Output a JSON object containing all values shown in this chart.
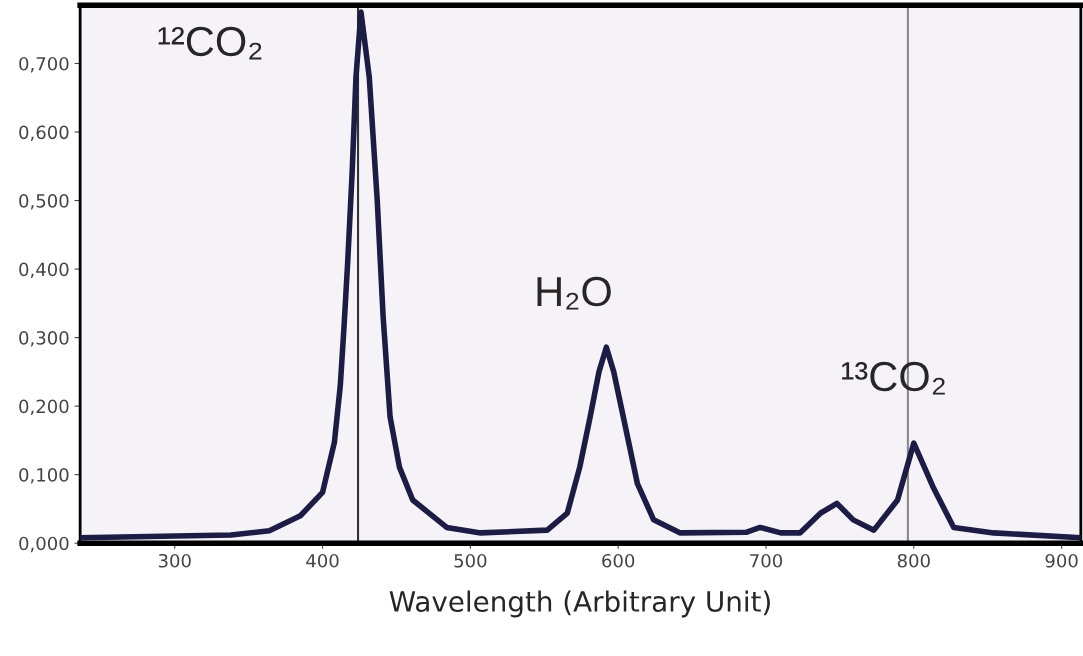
{
  "chart_data": {
    "type": "line",
    "xlabel": "Wavelength (Arbitrary Unit)",
    "series": [
      {
        "color": "#1c1c44",
        "x": [
          236,
          338,
          364,
          385,
          400,
          408,
          412,
          414.5,
          417,
          420,
          422.6,
          426,
          431.6,
          437,
          441,
          445.7,
          452,
          461,
          484,
          507,
          552,
          565.6,
          574,
          581,
          587,
          592,
          597,
          603.5,
          613,
          624,
          642,
          687,
          696,
          710,
          723,
          737,
          748,
          759,
          773,
          789,
          800,
          813,
          827,
          854,
          913
        ],
        "values": [
          0.008,
          0.012,
          0.018,
          0.04,
          0.074,
          0.147,
          0.23,
          0.315,
          0.41,
          0.54,
          0.68,
          0.775,
          0.68,
          0.5,
          0.33,
          0.184,
          0.111,
          0.063,
          0.023,
          0.015,
          0.019,
          0.044,
          0.111,
          0.184,
          0.25,
          0.286,
          0.25,
          0.184,
          0.087,
          0.034,
          0.015,
          0.016,
          0.023,
          0.015,
          0.015,
          0.044,
          0.058,
          0.034,
          0.019,
          0.063,
          0.146,
          0.082,
          0.023,
          0.015,
          0.008
        ]
      }
    ],
    "xlim": [
      236,
      913
    ],
    "ylim": [
      0,
      0.785
    ],
    "xticks": [
      300,
      400,
      500,
      600,
      700,
      800,
      900
    ],
    "yticks": [
      {
        "value": 0,
        "label": "0,000"
      },
      {
        "value": 0.1,
        "label": "0,100"
      },
      {
        "value": 0.2,
        "label": "0,200"
      },
      {
        "value": 0.3,
        "label": "0,300"
      },
      {
        "value": 0.4,
        "label": "0,400"
      },
      {
        "value": 0.5,
        "label": "0,500"
      },
      {
        "value": 0.6,
        "label": "0,600"
      },
      {
        "value": 0.7,
        "label": "0,700"
      }
    ],
    "ref_lines": [
      {
        "axis": "x",
        "value": 424,
        "color": "#333333"
      },
      {
        "axis": "x",
        "value": 796,
        "color": "#888888"
      }
    ],
    "annotations": [
      "¹²CO₂",
      "H₂O",
      "¹³CO₂"
    ],
    "grid": false
  }
}
